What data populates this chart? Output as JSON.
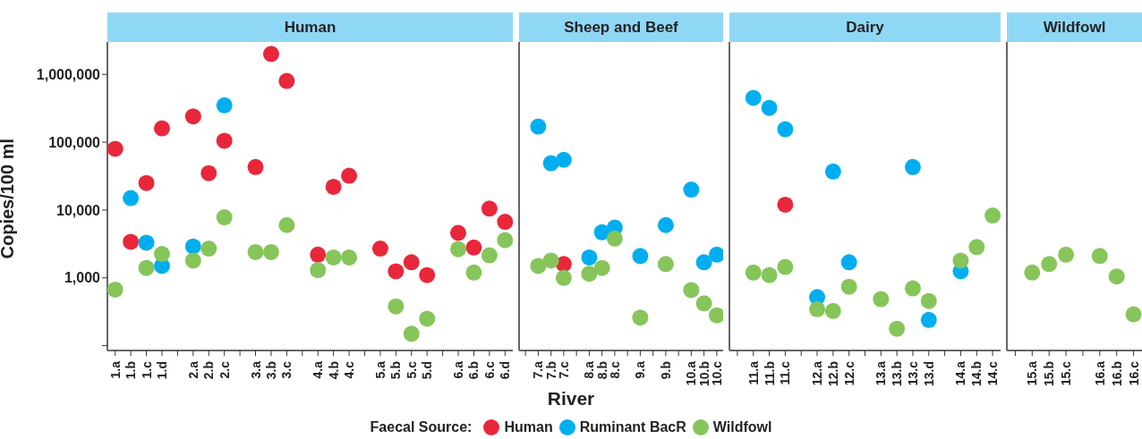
{
  "chart_data": [
    {
      "type": "scatter",
      "title": "Human",
      "ylabel": "Copies/100 ml",
      "xlabel": "River",
      "legend_title": "Faecal Source:",
      "legend": "bottom",
      "log": true,
      "marker": "circle",
      "grid": false,
      "ylim": [
        85,
        3000000
      ],
      "yticks": [
        {
          "value": 100,
          "label": null
        },
        {
          "value": 1000,
          "label": "1,000"
        },
        {
          "value": 10000,
          "label": "10,000"
        },
        {
          "value": 100000,
          "label": "100,000"
        },
        {
          "value": 1000000,
          "label": "1,000,000"
        }
      ],
      "categories": [
        "1.a",
        "1.b",
        "1.c",
        "1.d",
        null,
        "2.a",
        "2.b",
        "2.c",
        null,
        "3.a",
        "3.b",
        "3.c",
        null,
        "4.a",
        "4.b",
        "4.c",
        null,
        "5.a",
        "5.b",
        "5.c",
        "5.d",
        null,
        "6.a",
        "6.b",
        "6.c",
        "6.d"
      ],
      "series": [
        {
          "name": "Human",
          "color": "#e8283a",
          "values": [
            80000,
            3400,
            25000,
            160000,
            null,
            240000,
            35000,
            105000,
            null,
            43000,
            2000000,
            800000,
            null,
            2200,
            22000,
            32000,
            null,
            2700,
            1250,
            1700,
            1100,
            null,
            4600,
            2800,
            10500,
            6700
          ]
        },
        {
          "name": "Ruminant BacR",
          "color": "#00aeef",
          "values": [
            null,
            15000,
            3300,
            1500,
            null,
            2900,
            null,
            350000,
            null,
            null,
            null,
            null,
            null,
            null,
            null,
            null,
            null,
            null,
            null,
            null,
            null,
            null,
            null,
            null,
            null,
            null
          ]
        },
        {
          "name": "Wildfowl",
          "color": "#86c55a",
          "values": [
            670,
            null,
            1400,
            2250,
            null,
            1800,
            2700,
            7800,
            null,
            2400,
            2400,
            6000,
            null,
            1300,
            2000,
            2000,
            null,
            null,
            380,
            150,
            250,
            null,
            2650,
            1200,
            2150,
            3600
          ]
        }
      ]
    },
    {
      "type": "scatter",
      "title": "Sheep and Beef",
      "log": true,
      "marker": "circle",
      "grid": false,
      "tick_labels": "x",
      "ylim": [
        85,
        3000000
      ],
      "categories": [
        null,
        "7.a",
        "7.b",
        "7.c",
        null,
        "8.a",
        "8.b",
        "8.c",
        null,
        "9.a",
        null,
        "9.b",
        null,
        "10.a",
        "10.b",
        "10.c"
      ],
      "series": [
        {
          "color": "#e8283a",
          "values": [
            null,
            null,
            null,
            1600,
            null,
            null,
            null,
            null,
            null,
            null,
            null,
            null,
            null,
            null,
            null,
            null
          ]
        },
        {
          "color": "#00aeef",
          "values": [
            null,
            170000,
            49000,
            55000,
            null,
            2000,
            4700,
            5500,
            null,
            2100,
            null,
            6000,
            null,
            20000,
            1700,
            2200
          ]
        },
        {
          "color": "#86c55a",
          "values": [
            null,
            1500,
            1800,
            1000,
            null,
            1150,
            1400,
            3800,
            null,
            260,
            null,
            1600,
            null,
            660,
            420,
            280
          ]
        }
      ]
    },
    {
      "type": "scatter",
      "title": "Dairy",
      "log": true,
      "marker": "circle",
      "grid": false,
      "tick_labels": "x",
      "ylim": [
        85,
        3000000
      ],
      "categories": [
        null,
        "11.a",
        "11.b",
        "11.c",
        null,
        "12.a",
        "12.b",
        "12.c",
        null,
        "13.a",
        "13.b",
        "13.c",
        "13.d",
        null,
        "14.a",
        "14.b",
        "14.c"
      ],
      "series": [
        {
          "color": "#e8283a",
          "values": [
            null,
            null,
            null,
            12000,
            null,
            null,
            null,
            null,
            null,
            null,
            null,
            null,
            null,
            null,
            null,
            null,
            null
          ]
        },
        {
          "color": "#00aeef",
          "values": [
            null,
            450000,
            320000,
            155000,
            null,
            520,
            37000,
            1700,
            null,
            null,
            null,
            43000,
            240,
            null,
            1250,
            null,
            null
          ]
        },
        {
          "color": "#86c55a",
          "values": [
            null,
            1200,
            1100,
            1450,
            null,
            345,
            325,
            740,
            null,
            485,
            178,
            700,
            455,
            null,
            1800,
            2850,
            8300
          ]
        }
      ]
    },
    {
      "type": "scatter",
      "title": "Wildfowl",
      "log": true,
      "marker": "circle",
      "grid": false,
      "tick_labels": "x",
      "ylim": [
        85,
        3000000
      ],
      "categories": [
        null,
        "15.a",
        "15.b",
        "15.c",
        null,
        "16.a",
        "16.b",
        "16.c"
      ],
      "series": [
        {
          "color": "#86c55a",
          "values": [
            null,
            1200,
            1600,
            2200,
            null,
            2100,
            1050,
            290
          ]
        }
      ]
    }
  ]
}
